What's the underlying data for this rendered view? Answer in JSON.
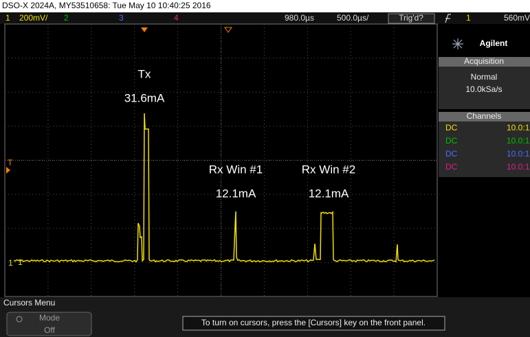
{
  "header": {
    "title": "DSO-X 2024A, MY53510658: Tue May 10 10:40:25 2016"
  },
  "status_bar": {
    "channels": [
      {
        "number": "1",
        "scale": "200mV/"
      },
      {
        "number": "2"
      },
      {
        "number": "3"
      },
      {
        "number": "4"
      }
    ],
    "delay": "980.0µs",
    "timebase": "500.0µs/",
    "trigger_status": "Trig'd?",
    "trigger_source": "1",
    "trigger_level": "560mV"
  },
  "side_panel": {
    "brand": "Agilent",
    "acquisition": {
      "title": "Acquisition",
      "mode": "Normal",
      "rate": "10.0kSa/s"
    },
    "channels": {
      "title": "Channels",
      "rows": [
        [
          "DC",
          "10.0:1"
        ],
        [
          "DC",
          "10.0:1"
        ],
        [
          "DC",
          "10.0:1"
        ],
        [
          "DC",
          "10.0:1"
        ]
      ]
    }
  },
  "annotations": [
    {
      "label": "Tx",
      "value": "31.6mA"
    },
    {
      "label": "Rx Win #1",
      "value": "12.1mA"
    },
    {
      "label": "Rx Win #2",
      "value": "12.1mA"
    }
  ],
  "markers": {
    "trigger": "T",
    "ground": "1"
  },
  "softkeys": {
    "menu": "Cursors Menu",
    "mode_label": "Mode",
    "mode_value": "Off"
  },
  "message": "To turn on cursors, press the [Cursors] key on the front panel."
}
